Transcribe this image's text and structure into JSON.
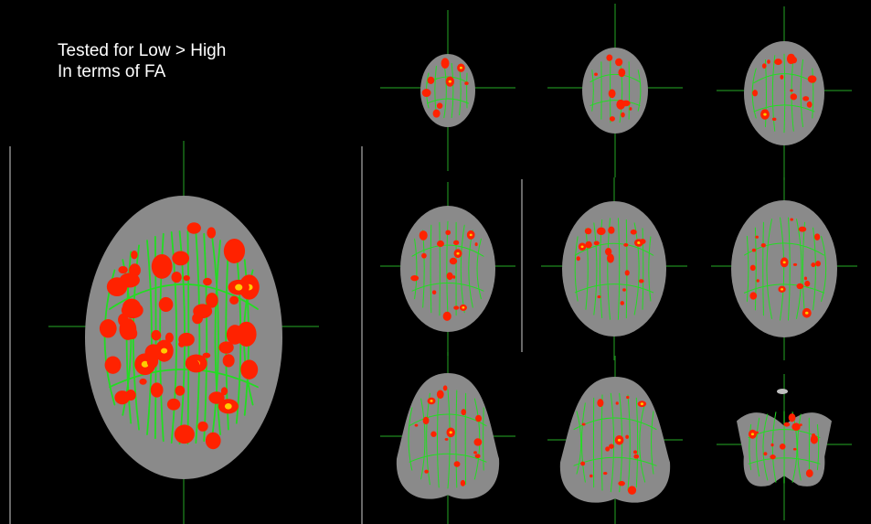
{
  "caption": {
    "line1": "Tested for Low > High",
    "line2": "In terms of FA"
  },
  "colors": {
    "background": "#000000",
    "brain_tissue": "#8a8a8a",
    "skeleton": "#22dd22",
    "cluster": "#ff2200",
    "cluster_peak": "#ffcc00",
    "crosshair": "#1f8a1f",
    "divider": "#cfcfcf"
  },
  "views": {
    "large": "axial-slice-main",
    "thumbnails": [
      "slice-1",
      "slice-2",
      "slice-3",
      "slice-4",
      "slice-5",
      "slice-6",
      "slice-7",
      "slice-8",
      "slice-9"
    ]
  }
}
